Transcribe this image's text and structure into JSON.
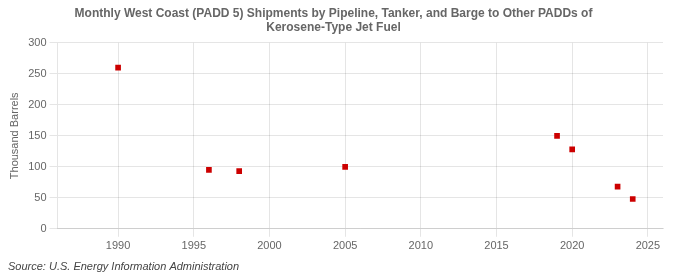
{
  "chart_data": {
    "type": "scatter",
    "title": "Monthly West Coast (PADD 5) Shipments by Pipeline, Tanker, and Barge to Other PADDs of\nKerosene-Type Jet Fuel",
    "ylabel": "Thousand Barrels",
    "annotations": [
      "Source: U.S. Energy Information Administration"
    ],
    "x": [
      1990,
      1996,
      1998,
      2005,
      2019,
      2020,
      2023,
      2024
    ],
    "values": [
      260,
      95,
      93,
      100,
      150,
      128,
      68,
      48
    ],
    "color": "#cc0000",
    "marker": "square",
    "xlim": [
      1986,
      2026
    ],
    "xticks": [
      1990,
      1995,
      2000,
      2005,
      2010,
      2015,
      2020,
      2025
    ],
    "ylim": [
      0,
      300
    ],
    "yticks": [
      0,
      50,
      100,
      150,
      200,
      250,
      300
    ],
    "grid": true
  }
}
